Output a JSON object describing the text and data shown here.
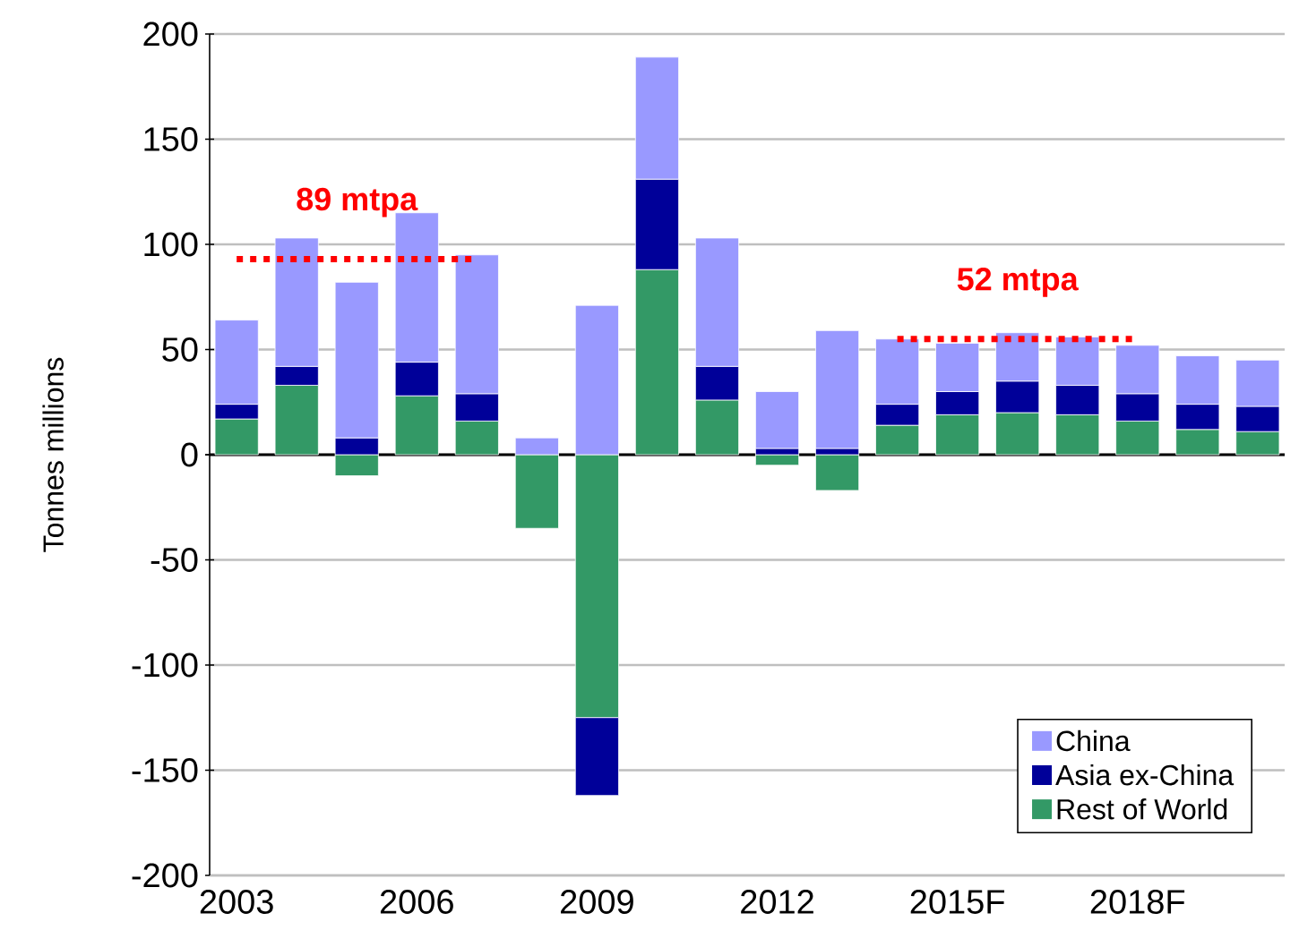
{
  "chart_data": {
    "type": "bar",
    "stacked": true,
    "ylabel": "Tonnes millions",
    "categories": [
      "2003",
      null,
      null,
      "2006",
      null,
      null,
      "2009",
      null,
      null,
      "2012",
      null,
      null,
      "2015F",
      null,
      null,
      "2018F",
      null,
      null
    ],
    "series": [
      {
        "name": "Rest of World",
        "color": "#339966",
        "values": [
          17,
          33,
          -10,
          28,
          16,
          -35,
          -125,
          88,
          26,
          -5,
          -17,
          14,
          19,
          20,
          19,
          16,
          12,
          11
        ]
      },
      {
        "name": "Asia ex-China",
        "color": "#000099",
        "values": [
          7,
          9,
          8,
          16,
          13,
          0,
          -37,
          43,
          16,
          3,
          3,
          10,
          11,
          15,
          14,
          13,
          12,
          12
        ]
      },
      {
        "name": "China",
        "color": "#9999ff",
        "values": [
          40,
          61,
          74,
          71,
          66,
          8,
          71,
          58,
          61,
          27,
          56,
          31,
          23,
          23,
          23,
          23,
          23,
          22
        ]
      },
      {
        "type": "line",
        "color": "#ff0000",
        "line_style": "dotted",
        "values": [
          93,
          93,
          93,
          93,
          93,
          null,
          null,
          null,
          null,
          null,
          null,
          null,
          null,
          null,
          null,
          null,
          null,
          null
        ]
      },
      {
        "type": "line",
        "color": "#ff0000",
        "line_style": "dotted",
        "values": [
          null,
          null,
          null,
          null,
          null,
          null,
          null,
          null,
          null,
          null,
          null,
          55,
          55,
          55,
          55,
          55,
          null,
          null
        ]
      }
    ],
    "annotations": [
      "89 mtpa",
      "52 mtpa"
    ],
    "ylim": [
      -200,
      200
    ],
    "yticks": [
      -200,
      -150,
      -100,
      -50,
      0,
      50,
      100,
      150,
      200
    ],
    "grid": "y",
    "legend": "bottom right"
  }
}
